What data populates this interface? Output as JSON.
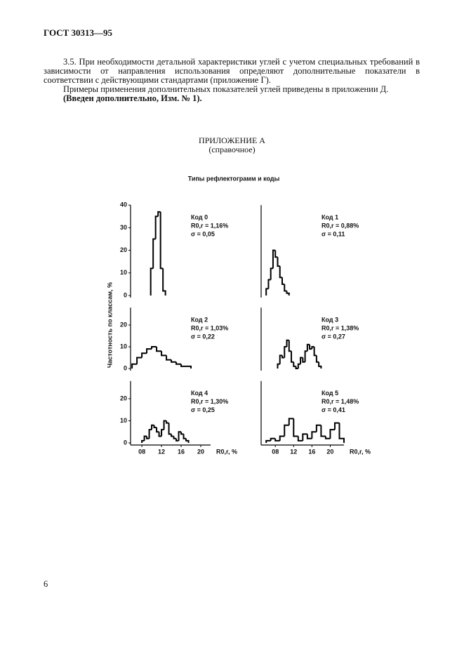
{
  "document": {
    "header": "ГОСТ 30313—95",
    "paragraphs": [
      "3.5. При необходимости детальной характеристики углей с учетом специальных требований в зависимости от направления использования определяют дополнительные показатели в соответствии с действующими стандартами (приложение Г).",
      "Примеры применения дополнительных показателей углей приведены в приложении Д."
    ],
    "amendment": "(Введен дополнительно, Изм. № 1).",
    "appendix_title": "ПРИЛОЖЕНИЕ А",
    "appendix_note": "(справочное)",
    "figure_title": "Типы рефлектограмм и коды",
    "y_axis_label": "Частотность по классам, %",
    "page_number": "6"
  },
  "chart_data": [
    {
      "type": "histogram",
      "color": "#000000",
      "annotations": [
        "Код 0",
        "R0,r = 1,16%",
        "σ = 0,05"
      ],
      "bins": [
        0.98,
        1.03,
        1.08,
        1.13,
        1.18,
        1.23,
        1.28
      ],
      "values": [
        12,
        25,
        35,
        37,
        12,
        2
      ],
      "xlim": [
        0.57,
        2.2
      ],
      "ylim": [
        0,
        40
      ],
      "yticks": [
        0,
        10,
        20,
        30,
        40
      ]
    },
    {
      "type": "histogram",
      "color": "#000000",
      "annotations": [
        "Код 1",
        "R0,r = 0,88%",
        "σ = 0,11"
      ],
      "bins": [
        0.6,
        0.65,
        0.7,
        0.75,
        0.8,
        0.85,
        0.9,
        0.95,
        1.0,
        1.05,
        1.1
      ],
      "values": [
        3,
        7,
        12,
        20,
        17,
        13,
        8,
        5,
        2,
        1
      ],
      "xlim": [
        0.49,
        2.3
      ],
      "ylim": [
        0,
        40
      ]
    },
    {
      "type": "histogram",
      "color": "#000000",
      "annotations": [
        "Код 2",
        "R0,r = 1,03%",
        "σ = 0,22"
      ],
      "bins": [
        0.6,
        0.7,
        0.8,
        0.9,
        1.0,
        1.1,
        1.2,
        1.3,
        1.4,
        1.5,
        1.6,
        1.7,
        1.8
      ],
      "values": [
        2,
        5,
        7,
        9,
        10,
        8,
        6,
        4,
        3,
        2,
        1,
        1
      ],
      "xlim": [
        0.57,
        2.2
      ],
      "ylim": [
        0,
        28
      ],
      "yticks": [
        0,
        10,
        20
      ]
    },
    {
      "type": "histogram",
      "color": "#000000",
      "annotations": [
        "Код 3",
        "R0,r = 1,38%",
        "σ = 0,27"
      ],
      "bins": [
        0.85,
        0.9,
        0.95,
        1.0,
        1.05,
        1.1,
        1.15,
        1.2,
        1.25,
        1.3,
        1.35,
        1.4,
        1.45,
        1.5,
        1.55,
        1.6,
        1.65,
        1.7,
        1.75,
        1.8
      ],
      "values": [
        2,
        6,
        5,
        10,
        13,
        8,
        3,
        1,
        0,
        2,
        5,
        3,
        8,
        11,
        9,
        10,
        6,
        3,
        1
      ],
      "xlim": [
        0.49,
        2.3
      ],
      "ylim": [
        0,
        28
      ]
    },
    {
      "type": "histogram",
      "color": "#000000",
      "annotations": [
        "Код 4",
        "R0,r = 1,30%",
        "σ = 0,25"
      ],
      "bins": [
        0.8,
        0.85,
        0.9,
        0.95,
        1.0,
        1.05,
        1.1,
        1.15,
        1.2,
        1.25,
        1.3,
        1.35,
        1.4,
        1.45,
        1.5,
        1.55,
        1.6,
        1.65,
        1.7,
        1.75
      ],
      "values": [
        1,
        3,
        2,
        6,
        8,
        7,
        5,
        3,
        6,
        10,
        9,
        4,
        3,
        2,
        1,
        5,
        4,
        2,
        1
      ],
      "xlim": [
        0.57,
        2.2
      ],
      "ylim": [
        0,
        28
      ],
      "yticks": [
        0,
        10,
        20
      ],
      "xticks": [
        {
          "value": 0.8,
          "label": "08"
        },
        {
          "value": 1.2,
          "label": "12"
        },
        {
          "value": 1.6,
          "label": "16"
        },
        {
          "value": 2.0,
          "label": "20"
        }
      ],
      "x_label": "R0,r, %"
    },
    {
      "type": "histogram",
      "color": "#000000",
      "annotations": [
        "Код 5",
        "R0,r = 1,48%",
        "σ = 0,41"
      ],
      "bins": [
        0.6,
        0.7,
        0.8,
        0.9,
        1.0,
        1.1,
        1.2,
        1.3,
        1.4,
        1.5,
        1.6,
        1.7,
        1.8,
        1.9,
        2.0,
        2.1,
        2.2,
        2.3
      ],
      "values": [
        1,
        2,
        1,
        3,
        8,
        11,
        3,
        1,
        4,
        2,
        5,
        8,
        3,
        2,
        6,
        9,
        2
      ],
      "xlim": [
        0.49,
        2.3
      ],
      "ylim": [
        0,
        28
      ],
      "xticks": [
        {
          "value": 0.8,
          "label": "08"
        },
        {
          "value": 1.2,
          "label": "12"
        },
        {
          "value": 1.6,
          "label": "16"
        },
        {
          "value": 2.0,
          "label": "20"
        }
      ],
      "x_label": "R0,r, %"
    }
  ]
}
